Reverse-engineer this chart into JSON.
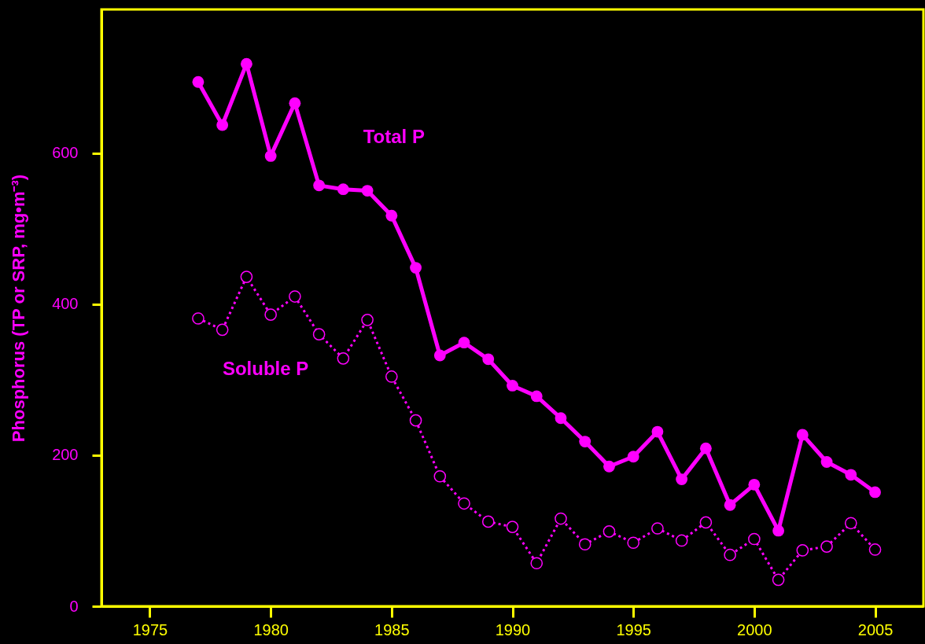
{
  "chart_data": {
    "type": "line",
    "ylabel": "Phosphorus (TP or SRP, mg•m⁻³)",
    "x": [
      1977,
      1978,
      1979,
      1980,
      1981,
      1982,
      1983,
      1984,
      1985,
      1986,
      1987,
      1988,
      1989,
      1990,
      1991,
      1992,
      1993,
      1994,
      1995,
      1996,
      1997,
      1998,
      1999,
      2000,
      2001,
      2002,
      2003,
      2004,
      2005
    ],
    "series": [
      {
        "name": "Total P",
        "color": "#ff00ff",
        "line_style": "solid",
        "marker": "circle",
        "values": [
          694,
          637,
          718,
          596,
          666,
          557,
          552,
          550,
          517,
          448,
          332,
          349,
          327,
          292,
          278,
          249,
          218,
          185,
          198,
          231,
          168,
          209,
          134,
          161,
          100,
          227,
          191,
          174,
          151
        ]
      },
      {
        "name": "Soluble P",
        "color": "#ff00ff",
        "line_style": "dotted",
        "marker": "circle",
        "values": [
          381,
          366,
          436,
          386,
          410,
          360,
          328,
          379,
          304,
          246,
          172,
          136,
          112,
          105,
          57,
          116,
          82,
          99,
          84,
          103,
          87,
          111,
          68,
          89,
          35,
          74,
          79,
          110,
          75
        ]
      }
    ],
    "xlim": [
      1973,
      2007
    ],
    "ylim": [
      0,
      790
    ],
    "xticks": [
      1975,
      1980,
      1985,
      1990,
      1995,
      2000,
      2005
    ],
    "yticks": [
      0,
      200,
      400,
      600
    ],
    "grid": false,
    "legend": false
  }
}
